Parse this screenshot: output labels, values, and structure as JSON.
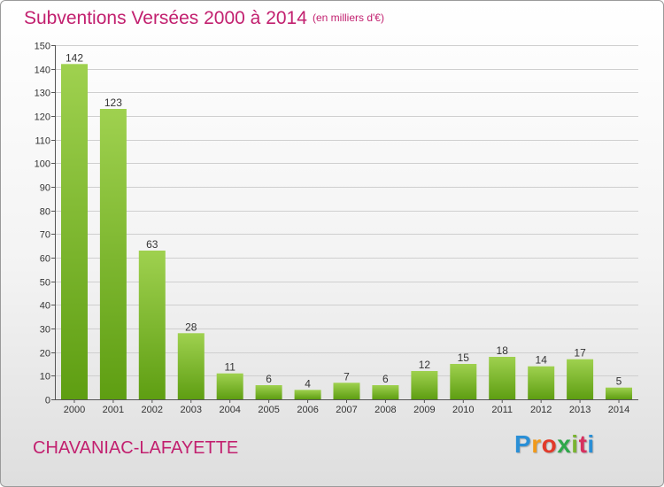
{
  "header": {
    "title": "Subventions Versées 2000 à 2014",
    "subtitle": "(en milliers d'€)"
  },
  "footer": {
    "commune": "CHAVANIAC-LAFAYETTE",
    "logo_letters": [
      "P",
      "r",
      "o",
      "x",
      "i",
      "t",
      "i"
    ]
  },
  "colors": {
    "title": "#c2206f",
    "bar_light": "#9fd14f",
    "bar_dark": "#5e9e12",
    "grid": "#cfcfcf"
  },
  "chart_data": {
    "type": "bar",
    "title": "Subventions Versées 2000 à 2014",
    "subtitle": "(en milliers d'€)",
    "xlabel": "",
    "ylabel": "",
    "categories": [
      "2000",
      "2001",
      "2002",
      "2003",
      "2004",
      "2005",
      "2006",
      "2007",
      "2008",
      "2009",
      "2010",
      "2011",
      "2012",
      "2013",
      "2014"
    ],
    "values": [
      142,
      123,
      63,
      28,
      11,
      6,
      4,
      7,
      6,
      12,
      15,
      18,
      14,
      17,
      5
    ],
    "ylim": [
      0,
      150
    ],
    "yticks": [
      0,
      10,
      20,
      30,
      40,
      50,
      60,
      70,
      80,
      90,
      100,
      110,
      120,
      130,
      140,
      150
    ],
    "grid": true,
    "legend": "none"
  }
}
